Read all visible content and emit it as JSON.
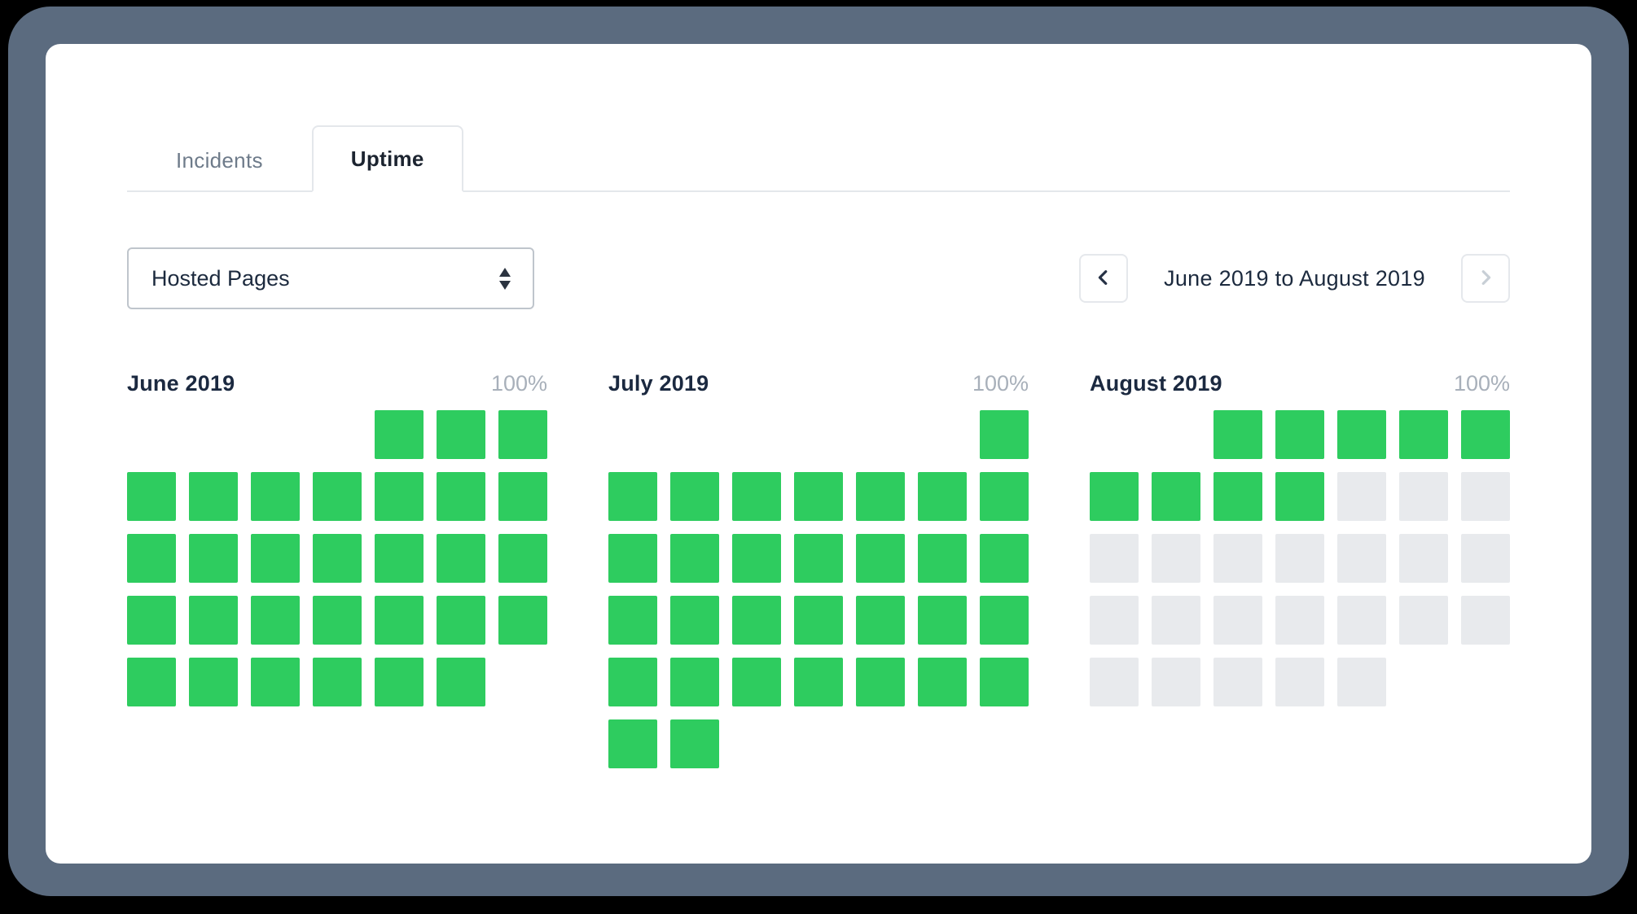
{
  "colors": {
    "frame": "#5b6b7f",
    "uptime_green": "#2ecc5f",
    "future_gray": "#e8eaed",
    "text_dark": "#1c2a3e",
    "text_muted": "#a8b0ba"
  },
  "tabs": [
    {
      "label": "Incidents",
      "active": false
    },
    {
      "label": "Uptime",
      "active": true
    }
  ],
  "filter": {
    "selected": "Hosted Pages"
  },
  "range_nav": {
    "label": "June 2019 to August 2019"
  },
  "chart_data": {
    "type": "heatmap",
    "description": "Daily uptime calendar heatmaps for three months. Cell codes per row string: u = day with 100% uptime (green), f = future day (gray), e = empty slot (no day).",
    "legend": {
      "up_color": "#2ecc5f",
      "future_color": "#e8eaed"
    },
    "months": [
      {
        "name": "June 2019",
        "uptime": "100%",
        "rows": [
          "eeeeuuu",
          "uuuuuuu",
          "uuuuuuu",
          "uuuuuuu",
          "uuuuuue"
        ]
      },
      {
        "name": "July 2019",
        "uptime": "100%",
        "rows": [
          "eeeeeeu",
          "uuuuuuu",
          "uuuuuuu",
          "uuuuuuu",
          "uuuuuuu",
          "uueeeee"
        ]
      },
      {
        "name": "August 2019",
        "uptime": "100%",
        "rows": [
          "eeuuuuu",
          "uuuufff",
          "fffffff",
          "fffffff",
          "fffffee"
        ]
      }
    ]
  }
}
